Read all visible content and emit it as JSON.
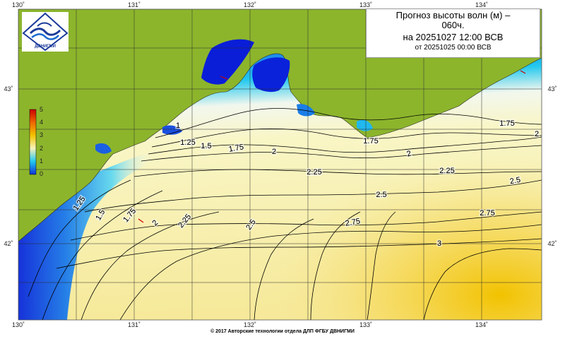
{
  "title": {
    "line1": "Прогноз высоты волн (м) –",
    "line2": "060ч.",
    "line3": "на 20251027 12:00 ВСВ",
    "line4": "от 20251025 00:00 ВСВ"
  },
  "logo": {
    "icon": "wave-emblem-icon",
    "text": "ДВНИГМИ"
  },
  "footer": "© 2017 Авторские технологии отдела ДЛП ФГБУ ДВНИГМИ",
  "axes": {
    "lon_ticks_top": [
      "130˚",
      "131˚",
      "132˚",
      "133˚",
      "134˚"
    ],
    "lon_ticks_bottom": [
      "130˚",
      "131˚",
      "132˚",
      "133˚",
      "134˚"
    ],
    "lat_ticks_left": [
      "43˚",
      "42˚"
    ],
    "lat_ticks_right": [
      "43˚",
      "42˚"
    ]
  },
  "colorbar": {
    "labels": [
      "5",
      "4",
      "3",
      "2",
      "1",
      "0"
    ],
    "colors": [
      "#cc0000",
      "#ee6600",
      "#f2c400",
      "#f7f3bb",
      "#22c8ee",
      "#1033d8"
    ]
  },
  "colors": {
    "land": "#8cb52c",
    "sea_low": "#0a18d4",
    "sea_mid": "#20c8ef",
    "sea_high": "#f8f6cc",
    "sea_max": "#f3c200"
  },
  "contour_labels": [
    "1",
    "1.25",
    "1.5",
    "1.75",
    "2",
    "1.75",
    "2",
    "1.75",
    "2",
    "2.25",
    "2.25",
    "2.5",
    "2.5",
    "2.75",
    "2.75",
    "3",
    "2",
    "2.25",
    "2.5",
    "1.25",
    "1.5",
    "1.75"
  ]
}
